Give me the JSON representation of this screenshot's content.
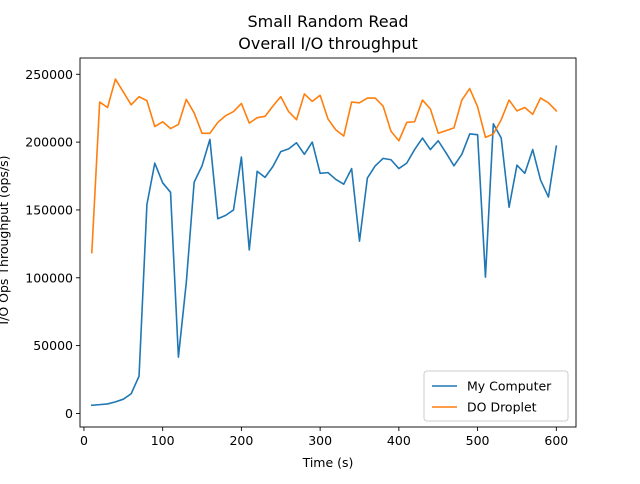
{
  "chart_data": {
    "type": "line",
    "title": "Small Random Read",
    "subtitle": "Overall I/O throughput",
    "xlabel": "Time (s)",
    "ylabel": "I/O Ops Throughput (ops/s)",
    "xlim": [
      -5,
      625
    ],
    "ylim": [
      -10000,
      262000
    ],
    "xticks": [
      0,
      100,
      200,
      300,
      400,
      500,
      600
    ],
    "yticks": [
      0,
      50000,
      100000,
      150000,
      200000,
      250000
    ],
    "grid": false,
    "legend_position": "lower-right",
    "series": [
      {
        "name": "My Computer",
        "color": "#1f77b4",
        "x": [
          10,
          20,
          30,
          40,
          50,
          60,
          70,
          80,
          90,
          100,
          110,
          120,
          130,
          140,
          150,
          160,
          170,
          180,
          190,
          200,
          210,
          220,
          230,
          240,
          250,
          260,
          270,
          280,
          290,
          300,
          310,
          320,
          330,
          340,
          350,
          360,
          370,
          380,
          390,
          400,
          410,
          420,
          430,
          440,
          450,
          460,
          470,
          480,
          490,
          500,
          510,
          520,
          530,
          540,
          550,
          560,
          570,
          580,
          590,
          600
        ],
        "y": [
          6000,
          6500,
          7000,
          8500,
          10500,
          14500,
          27500,
          154000,
          184500,
          170000,
          163000,
          41500,
          96500,
          170500,
          182500,
          202000,
          143500,
          146000,
          150000,
          189000,
          120500,
          178500,
          174000,
          182000,
          193000,
          195000,
          199500,
          191000,
          200000,
          177000,
          177500,
          172500,
          169000,
          180500,
          127000,
          173500,
          182500,
          188000,
          187000,
          180500,
          184500,
          194500,
          203000,
          194500,
          201000,
          192000,
          182500,
          191000,
          206000,
          205500,
          100500,
          213500,
          203000,
          152000,
          183000,
          177000,
          194500,
          172000,
          159500,
          197000
        ]
      },
      {
        "name": "DO Droplet",
        "color": "#ff7f0e",
        "x": [
          10,
          20,
          30,
          40,
          50,
          60,
          70,
          80,
          90,
          100,
          110,
          120,
          130,
          140,
          150,
          160,
          170,
          180,
          190,
          200,
          210,
          220,
          230,
          240,
          250,
          260,
          270,
          280,
          290,
          300,
          310,
          320,
          330,
          340,
          350,
          360,
          370,
          380,
          390,
          400,
          410,
          420,
          430,
          440,
          450,
          460,
          470,
          480,
          490,
          500,
          510,
          520,
          530,
          540,
          550,
          560,
          570,
          580,
          590,
          600
        ],
        "y": [
          118500,
          229500,
          225500,
          246500,
          237000,
          227500,
          233500,
          230500,
          211500,
          215000,
          210000,
          213000,
          231500,
          221500,
          206500,
          206500,
          214500,
          219500,
          222500,
          228500,
          214000,
          218000,
          219000,
          226500,
          233500,
          222500,
          216500,
          235500,
          230000,
          234500,
          217000,
          209000,
          204500,
          229500,
          229000,
          232500,
          232500,
          226500,
          208000,
          201000,
          214500,
          215000,
          231000,
          224500,
          206500,
          208500,
          210500,
          231000,
          239500,
          226000,
          203500,
          206000,
          216500,
          231000,
          223000,
          225500,
          220500,
          232500,
          229000,
          223000
        ]
      }
    ]
  }
}
